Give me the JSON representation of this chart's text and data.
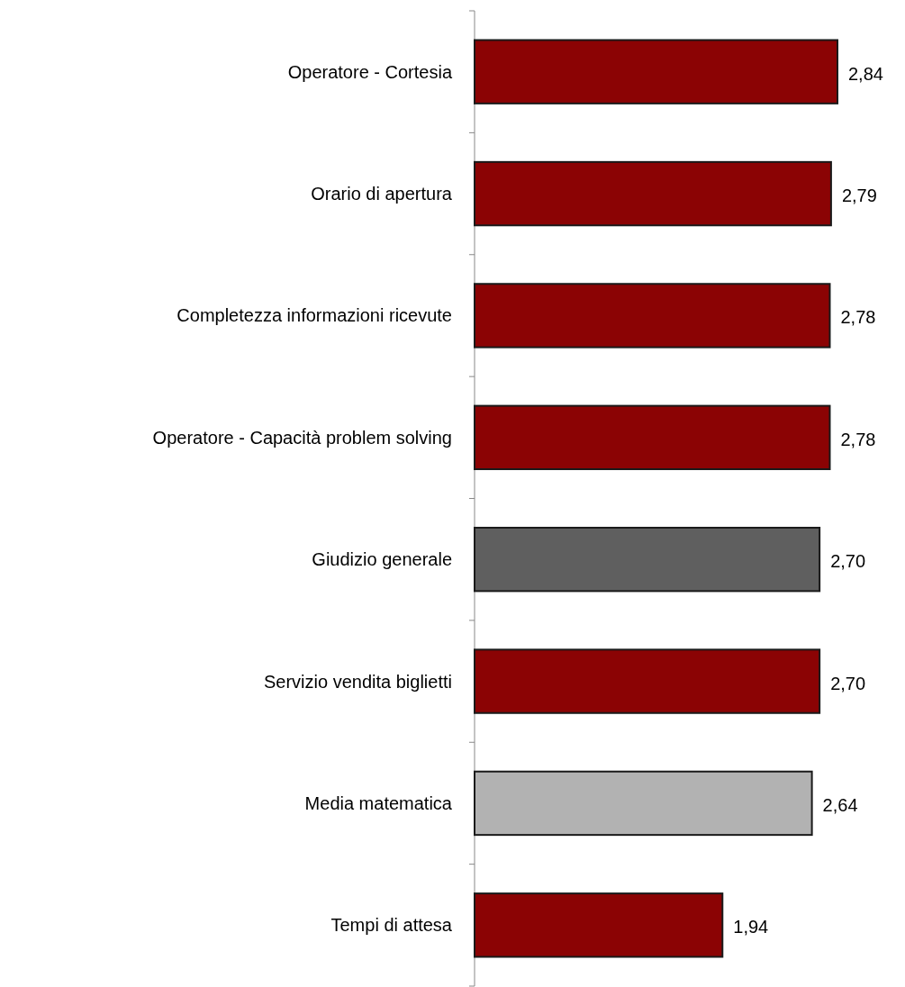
{
  "chart_data": {
    "type": "bar",
    "orientation": "horizontal",
    "categories": [
      "Operatore - Cortesia",
      "Orario di apertura",
      "Completezza informazioni ricevute",
      "Operatore - Capacità problem solving",
      "Giudizio generale",
      "Servizio vendita biglietti",
      "Media matematica",
      "Tempi di attesa"
    ],
    "values": [
      2.84,
      2.79,
      2.78,
      2.78,
      2.7,
      2.7,
      2.64,
      1.94
    ],
    "colors": [
      "#8b0304",
      "#8b0304",
      "#8b0304",
      "#8b0304",
      "#5f5f5f",
      "#8b0304",
      "#b2b2b2",
      "#8b0304"
    ],
    "value_labels": [
      "2,84",
      "2,79",
      "2,78",
      "2,78",
      "2,70",
      "2,70",
      "2,64",
      "1,94"
    ],
    "tick_labels": "y"
  }
}
